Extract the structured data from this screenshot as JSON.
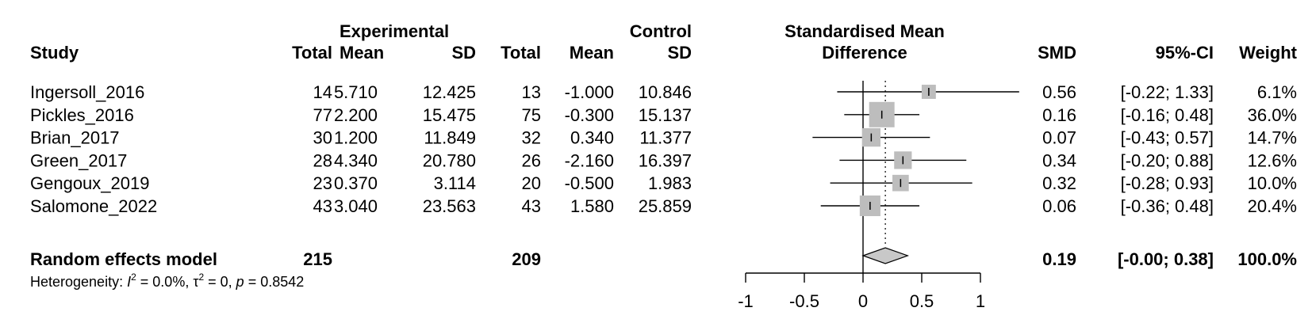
{
  "headers": {
    "study": "Study",
    "experimental": "Experimental",
    "control": "Control",
    "total": "Total",
    "mean": "Mean",
    "sd": "SD",
    "smd_title_line1": "Standardised Mean",
    "smd_title_line2": "Difference",
    "smd": "SMD",
    "ci": "95%-CI",
    "weight": "Weight"
  },
  "studies": [
    {
      "name": "Ingersoll_2016",
      "e_total": "14",
      "e_mean": "5.710",
      "e_sd": "12.425",
      "c_total": "13",
      "c_mean": "-1.000",
      "c_sd": "10.846",
      "smd_text": "0.56",
      "ci_text": "[-0.22; 1.33]",
      "weight_text": "6.1%"
    },
    {
      "name": "Pickles_2016",
      "e_total": "77",
      "e_mean": "2.200",
      "e_sd": "15.475",
      "c_total": "75",
      "c_mean": "-0.300",
      "c_sd": "15.137",
      "smd_text": "0.16",
      "ci_text": "[-0.16; 0.48]",
      "weight_text": "36.0%"
    },
    {
      "name": "Brian_2017",
      "e_total": "30",
      "e_mean": "1.200",
      "e_sd": "11.849",
      "c_total": "32",
      "c_mean": "0.340",
      "c_sd": "11.377",
      "smd_text": "0.07",
      "ci_text": "[-0.43; 0.57]",
      "weight_text": "14.7%"
    },
    {
      "name": "Green_2017",
      "e_total": "28",
      "e_mean": "4.340",
      "e_sd": "20.780",
      "c_total": "26",
      "c_mean": "-2.160",
      "c_sd": "16.397",
      "smd_text": "0.34",
      "ci_text": "[-0.20; 0.88]",
      "weight_text": "12.6%"
    },
    {
      "name": "Gengoux_2019",
      "e_total": "23",
      "e_mean": "0.370",
      "e_sd": "3.114",
      "c_total": "20",
      "c_mean": "-0.500",
      "c_sd": "1.983",
      "smd_text": "0.32",
      "ci_text": "[-0.28; 0.93]",
      "weight_text": "10.0%"
    },
    {
      "name": "Salomone_2022",
      "e_total": "43",
      "e_mean": "3.040",
      "e_sd": "23.563",
      "c_total": "43",
      "c_mean": "1.580",
      "c_sd": "25.859",
      "smd_text": "0.06",
      "ci_text": "[-0.36; 0.48]",
      "weight_text": "20.4%"
    }
  ],
  "summary": {
    "label": "Random effects model",
    "e_total": "215",
    "c_total": "209",
    "smd_text": "0.19",
    "ci_text": "[-0.00; 0.38]",
    "weight_text": "100.0%"
  },
  "heterogeneity": {
    "prefix": "Heterogeneity: ",
    "i2_symbol": "I",
    "i2_value": " = 0.0%, ",
    "tau_symbol": "τ",
    "tau_value": " = 0, ",
    "p_symbol": "p",
    "p_value": " = 0.8542"
  },
  "chart_data": {
    "type": "forest",
    "xlim": [
      -1,
      1
    ],
    "x_ticks": [
      -1,
      -0.5,
      0,
      0.5,
      1
    ],
    "x_tick_labels": [
      "-1",
      "-0.5",
      "0",
      "0.5",
      "1"
    ],
    "null_line": 0,
    "studies": [
      {
        "name": "Ingersoll_2016",
        "smd": 0.56,
        "lower": -0.22,
        "upper": 1.33,
        "weight": 6.1
      },
      {
        "name": "Pickles_2016",
        "smd": 0.16,
        "lower": -0.16,
        "upper": 0.48,
        "weight": 36.0
      },
      {
        "name": "Brian_2017",
        "smd": 0.07,
        "lower": -0.43,
        "upper": 0.57,
        "weight": 14.7
      },
      {
        "name": "Green_2017",
        "smd": 0.34,
        "lower": -0.2,
        "upper": 0.88,
        "weight": 12.6
      },
      {
        "name": "Gengoux_2019",
        "smd": 0.32,
        "lower": -0.28,
        "upper": 0.93,
        "weight": 10.0
      },
      {
        "name": "Salomone_2022",
        "smd": 0.06,
        "lower": -0.36,
        "upper": 0.48,
        "weight": 20.4
      }
    ],
    "pooled": {
      "smd": 0.19,
      "lower": -0.0,
      "upper": 0.38,
      "weight": 100.0
    },
    "colors": {
      "square": "#bdbdbd",
      "diamond": "#c8c8c8",
      "line": "#000000",
      "summary_line": "#000000"
    }
  }
}
